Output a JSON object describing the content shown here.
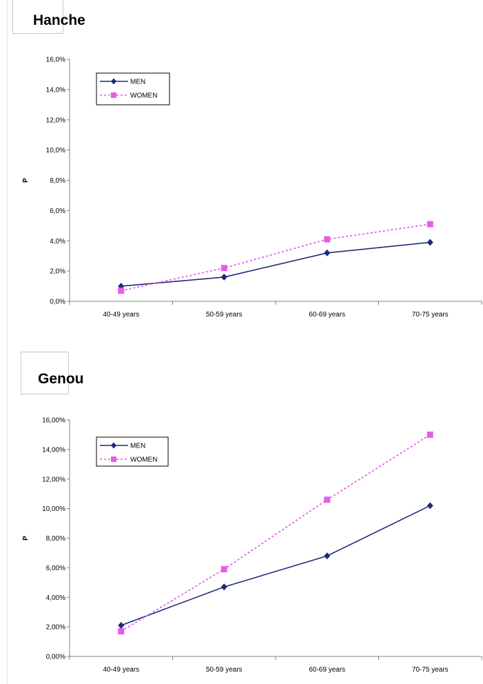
{
  "colors": {
    "men": "#1f2a78",
    "women": "#e85ce8",
    "axis": "#808080"
  },
  "chart_data": [
    {
      "type": "line",
      "title": "Hanche",
      "ylabel": "P",
      "ylim": [
        0,
        16
      ],
      "yticks": [
        "0,0%",
        "2,0%",
        "4,0%",
        "6,0%",
        "8,0%",
        "10,0%",
        "12,0%",
        "14,0%",
        "16,0%"
      ],
      "categories": [
        "40-49 years",
        "50-59 years",
        "60-69 years",
        "70-75 years"
      ],
      "legend_position": "top-left",
      "grid": false,
      "series": [
        {
          "name": "MEN",
          "marker": "diamond",
          "line": "solid",
          "values": [
            1.0,
            1.6,
            3.2,
            3.9
          ]
        },
        {
          "name": "WOMEN",
          "marker": "square",
          "line": "dotted",
          "values": [
            0.7,
            2.2,
            4.1,
            5.1
          ]
        }
      ]
    },
    {
      "type": "line",
      "title": "Genou",
      "ylabel": "P",
      "ylim": [
        0,
        16
      ],
      "yticks": [
        "0,00%",
        "2,00%",
        "4,00%",
        "6,00%",
        "8,00%",
        "10,00%",
        "12,00%",
        "14,00%",
        "16,00%"
      ],
      "categories": [
        "40-49 years",
        "50-59 years",
        "60-69 years",
        "70-75 years"
      ],
      "legend_position": "top-left",
      "grid": false,
      "series": [
        {
          "name": "MEN",
          "marker": "diamond",
          "line": "solid",
          "values": [
            2.1,
            4.7,
            6.8,
            10.2
          ]
        },
        {
          "name": "WOMEN",
          "marker": "square",
          "line": "dotted",
          "values": [
            1.7,
            5.9,
            10.6,
            15.0
          ]
        }
      ]
    }
  ]
}
